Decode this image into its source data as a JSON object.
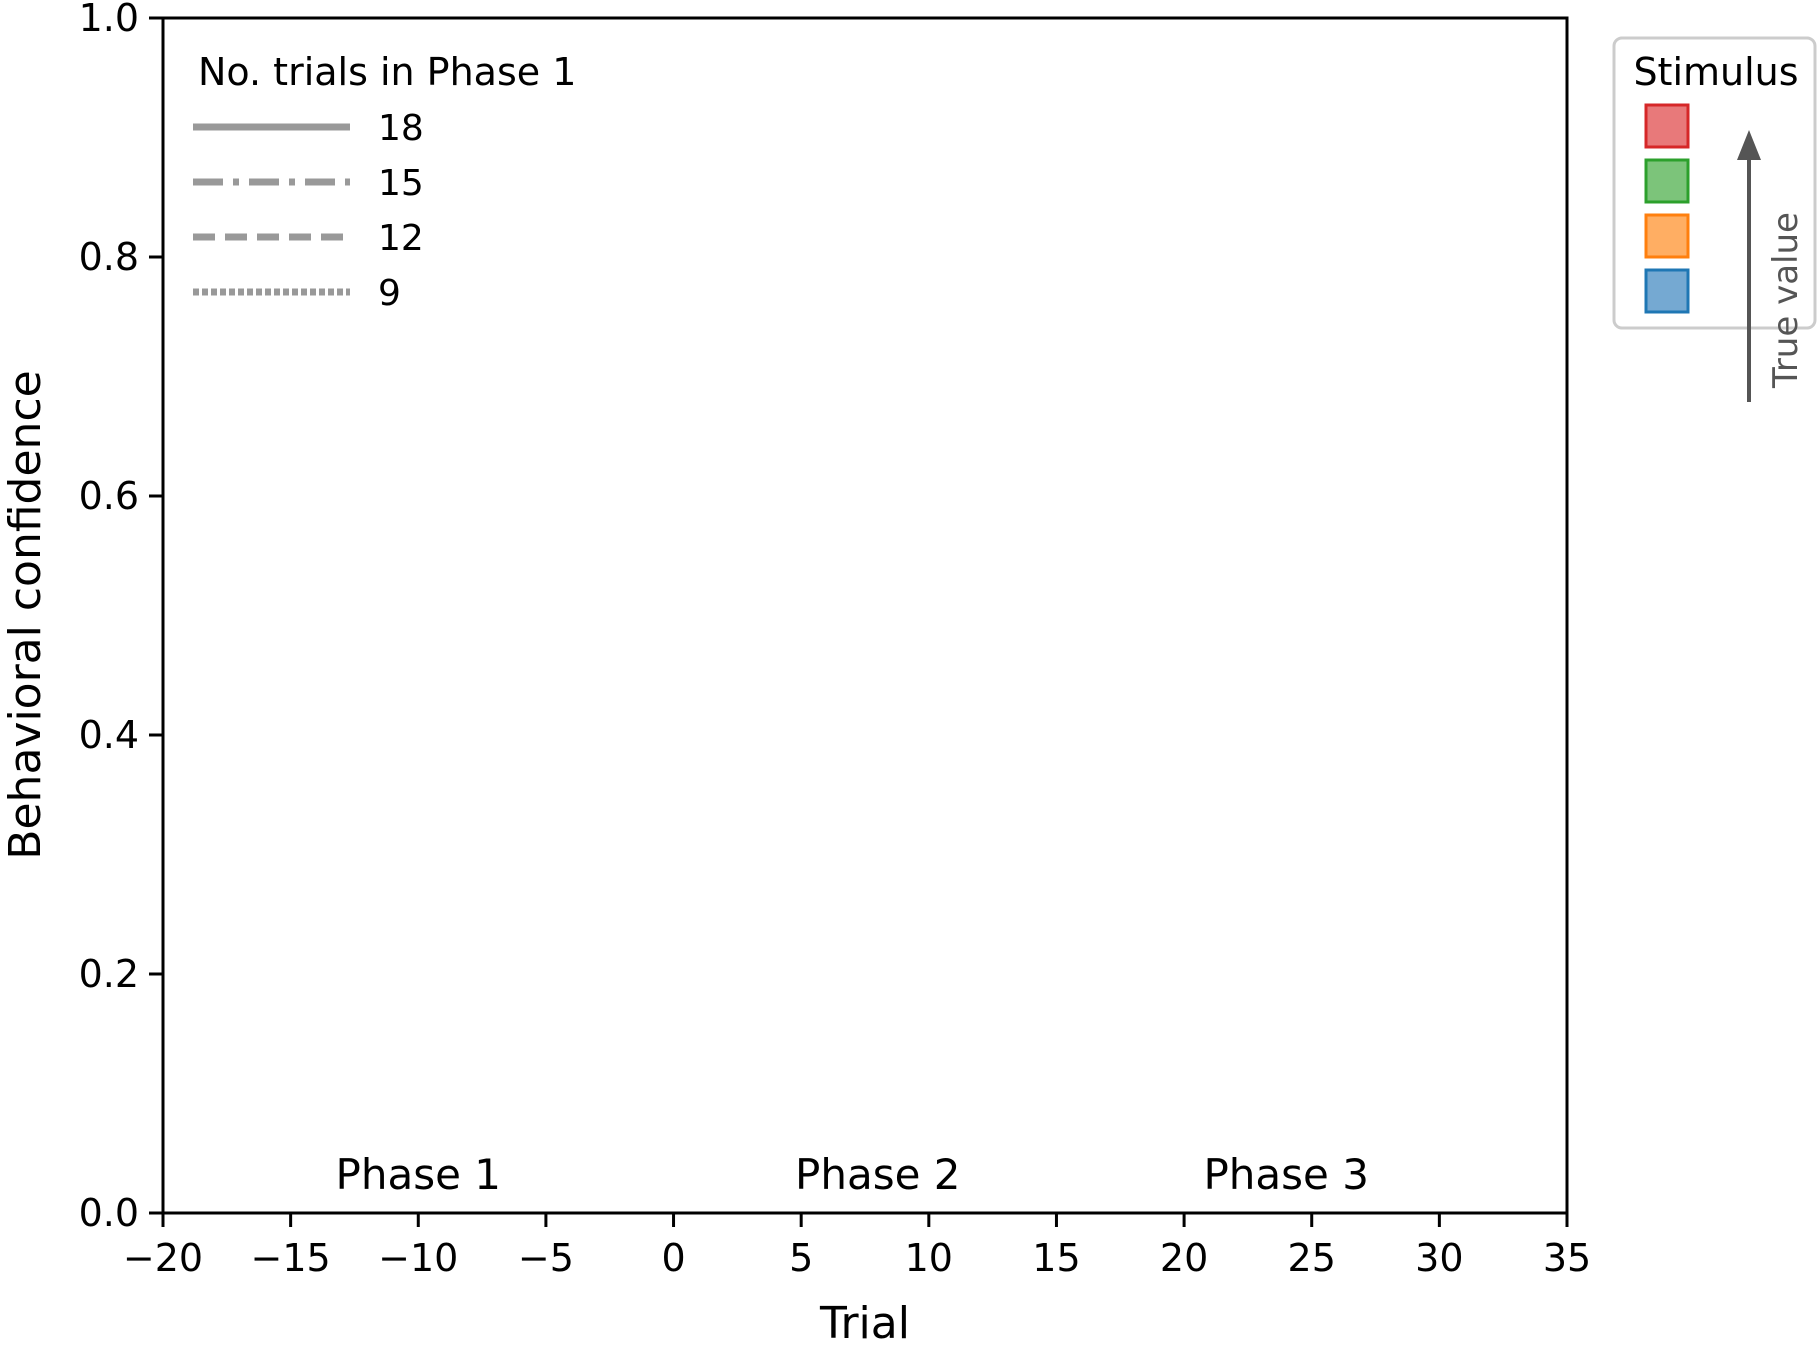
{
  "chart_data": {
    "type": "line",
    "xlabel": "Trial",
    "ylabel": "Behavioral confidence",
    "xlim": [
      -20,
      35
    ],
    "ylim": [
      0.0,
      1.0
    ],
    "xticks": [
      -20,
      -15,
      -10,
      -5,
      0,
      5,
      10,
      15,
      20,
      25,
      30,
      35
    ],
    "xtick_labels": [
      "−20",
      "−15",
      "−10",
      "−5",
      "0",
      "5",
      "10",
      "15",
      "20",
      "25",
      "30",
      "35"
    ],
    "yticks": [
      0.0,
      0.2,
      0.4,
      0.6,
      0.8,
      1.0
    ],
    "ytick_labels": [
      "0.0",
      "0.2",
      "0.4",
      "0.6",
      "0.8",
      "1.0"
    ],
    "grid": false,
    "series": [],
    "phase_annotations": [
      {
        "text": "Phase 1",
        "x": -10
      },
      {
        "text": "Phase 2",
        "x": 8
      },
      {
        "text": "Phase 3",
        "x": 24
      }
    ],
    "linestyle_legend": {
      "title": "No. trials in Phase 1",
      "placement": "top-left",
      "entries": [
        {
          "label": "18",
          "style": "solid"
        },
        {
          "label": "15",
          "style": "dashdot"
        },
        {
          "label": "12",
          "style": "dashed"
        },
        {
          "label": "9",
          "style": "dotted"
        }
      ],
      "color": "#999999"
    },
    "color_legend": {
      "title": "Stimulus",
      "placement": "outside-right",
      "colors": [
        "#e8797a",
        "#7cc47a",
        "#ffae63",
        "#75a9d2"
      ],
      "edge_colors": [
        "#d62728",
        "#2ca02c",
        "#ff7f0e",
        "#1f77b4"
      ],
      "arrow_label": "True value"
    }
  }
}
